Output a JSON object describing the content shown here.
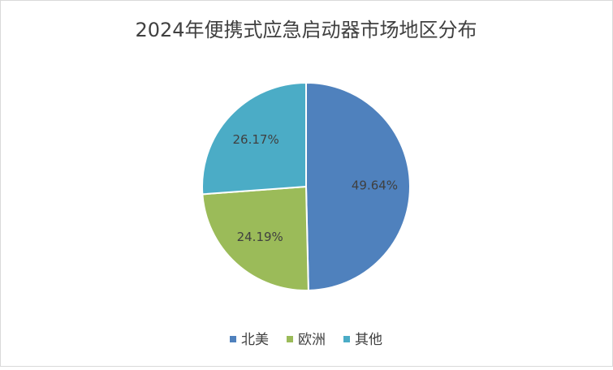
{
  "chart_data": {
    "type": "pie",
    "title": "2024年便携式应急启动器市场地区分布",
    "categories": [
      "北美",
      "欧洲",
      "其他"
    ],
    "values": [
      49.64,
      24.19,
      26.17
    ],
    "value_labels": [
      "49.64%",
      "24.19%",
      "26.17%"
    ],
    "colors": [
      "#4f81bd",
      "#9bbb59",
      "#4bacc6"
    ],
    "legend": "bottom"
  }
}
